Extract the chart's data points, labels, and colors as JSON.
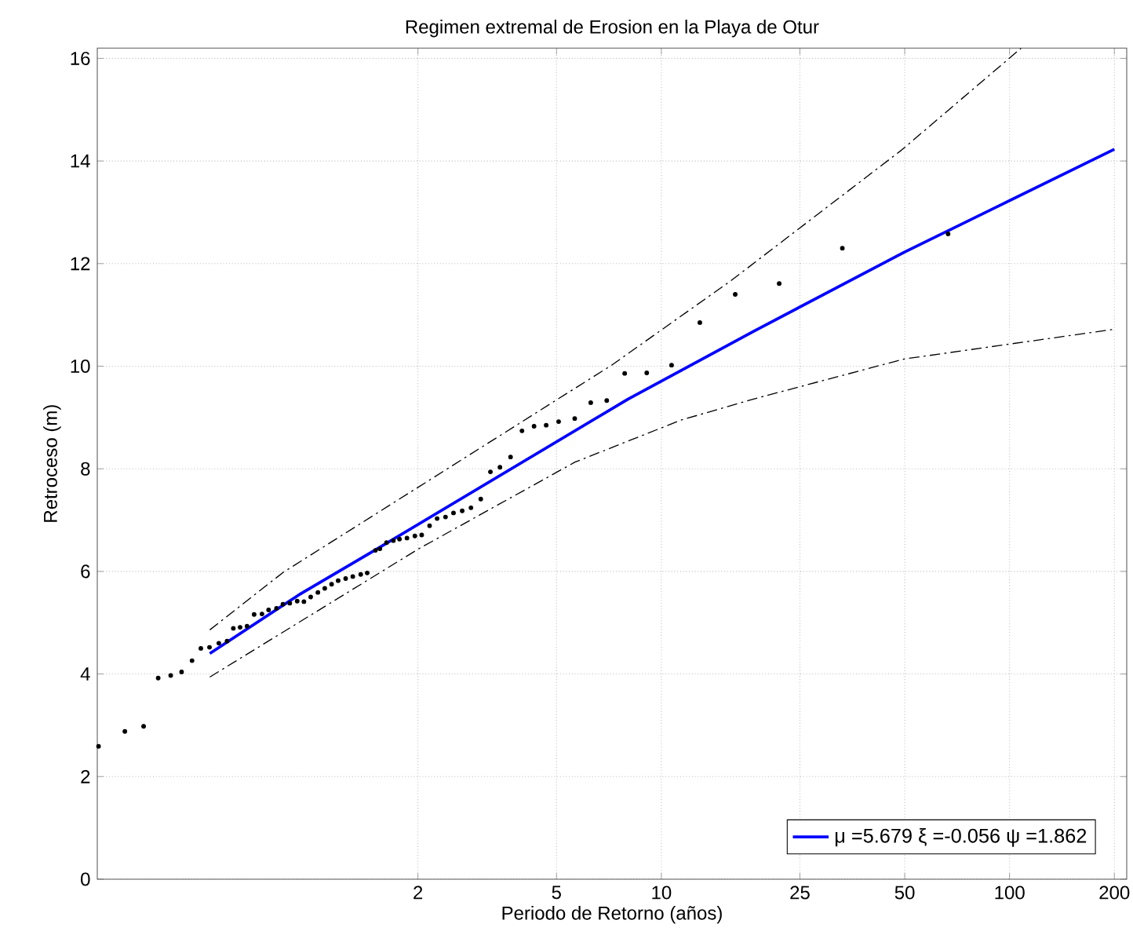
{
  "chart_data": {
    "type": "line",
    "title": "Regimen extremal de Erosion en la Playa de Otur",
    "xlabel": "Periodo de Retorno (años)",
    "ylabel": "Retroceso (m)",
    "log": "x",
    "xlim": [
      0.24,
      217
    ],
    "ylim": [
      0,
      16.2
    ],
    "xticks": [
      2,
      5,
      10,
      25,
      50,
      100,
      200
    ],
    "yticks": [
      0,
      2,
      4,
      6,
      8,
      10,
      12,
      14,
      16
    ],
    "grid": true,
    "legend": "bottom right",
    "series": [
      {
        "type": "scatter",
        "color": "#000000",
        "marker": "circle",
        "x": [
          0.242,
          0.288,
          0.326,
          0.359,
          0.39,
          0.419,
          0.449,
          0.476,
          0.504,
          0.536,
          0.566,
          0.59,
          0.617,
          0.646,
          0.677,
          0.713,
          0.745,
          0.785,
          0.819,
          0.857,
          0.9,
          0.941,
          0.984,
          1.032,
          1.08,
          1.13,
          1.18,
          1.24,
          1.3,
          1.37,
          1.43,
          1.51,
          1.555,
          1.625,
          1.7,
          1.77,
          1.86,
          1.96,
          2.05,
          2.16,
          2.27,
          2.4,
          2.53,
          2.68,
          2.84,
          3.03,
          3.23,
          3.44,
          3.69,
          3.98,
          4.31,
          4.67,
          5.07,
          5.64,
          6.27,
          6.97,
          7.85,
          9.08,
          10.7,
          12.9,
          16.3,
          21.8,
          33.1,
          66.6
        ],
        "values": [
          2.59,
          2.88,
          2.98,
          3.92,
          3.97,
          4.04,
          4.26,
          4.5,
          4.52,
          4.6,
          4.64,
          4.89,
          4.91,
          4.93,
          5.16,
          5.17,
          5.25,
          5.28,
          5.36,
          5.38,
          5.42,
          5.41,
          5.5,
          5.59,
          5.67,
          5.75,
          5.82,
          5.86,
          5.9,
          5.94,
          5.97,
          6.41,
          6.44,
          6.56,
          6.6,
          6.63,
          6.65,
          6.69,
          6.71,
          6.89,
          7.03,
          7.06,
          7.14,
          7.18,
          7.24,
          7.41,
          7.94,
          8.03,
          8.23,
          8.74,
          8.83,
          8.85,
          8.92,
          8.98,
          9.29,
          9.33,
          9.86,
          9.87,
          10.02,
          10.85,
          11.4,
          11.61,
          12.3,
          12.58
        ]
      },
      {
        "name": "μ =5.679 ξ =-0.056 ψ =1.862",
        "color": "#0000ff",
        "line_style": "solid",
        "x": [
          0.505,
          0.909,
          1.528,
          8.03,
          18.4,
          49.8,
          200
        ],
        "values": [
          4.4,
          5.54,
          6.44,
          9.36,
          10.68,
          12.22,
          14.23
        ]
      },
      {
        "color": "#000000",
        "line_style": "dashed",
        "x": [
          0.505,
          0.82,
          7.2,
          15.8,
          48.9,
          108
        ],
        "values": [
          4.86,
          5.98,
          10.02,
          11.66,
          14.21,
          16.2
        ]
      },
      {
        "color": "#000000",
        "line_style": "dashed",
        "x": [
          0.505,
          2.01,
          5.65,
          11.4,
          18.4,
          49.8,
          200
        ],
        "values": [
          3.94,
          6.44,
          8.13,
          8.95,
          9.36,
          10.14,
          10.72
        ]
      }
    ]
  }
}
